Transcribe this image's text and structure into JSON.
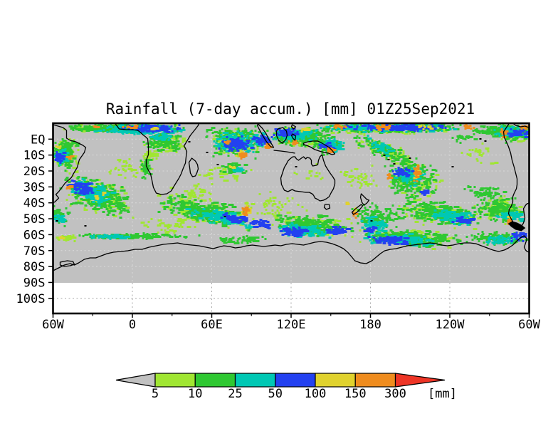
{
  "title": "Rainfall (7-day accum.) [mm] 01Z25Sep2021",
  "map": {
    "y_axis": {
      "labels": [
        "EQ",
        "10S",
        "20S",
        "30S",
        "40S",
        "50S",
        "60S",
        "70S",
        "80S",
        "90S",
        "100S"
      ]
    },
    "x_axis": {
      "labels": [
        "60W",
        "0",
        "60E",
        "120E",
        "180",
        "120W",
        "60W"
      ]
    }
  },
  "colorbar": {
    "labels": [
      "5",
      "10",
      "25",
      "50",
      "100",
      "150",
      "300"
    ],
    "levels": [
      5,
      10,
      25,
      50,
      100,
      150,
      300
    ],
    "unit": "[mm]",
    "segment_colors": [
      "#a0e632",
      "#2fc832",
      "#00c8b4",
      "#2341f0",
      "#e0d22e",
      "#ef8c1e"
    ],
    "arrow_low_color": "#c1c1c1",
    "arrow_high_color": "#ee3526"
  },
  "palette": {
    "bg": "#c1c1c1",
    "below_pole": "#ffffff",
    "c5": "#a0e632",
    "c10": "#2fc832",
    "c25": "#00c8b4",
    "c50": "#2341f0",
    "c100": "#e0d22e",
    "c150": "#ef8c1e",
    "c300": "#ee3526",
    "coast": "#000000",
    "grid_light": "#d9d9d9",
    "grid_dark": "#a9a9a9",
    "frame": "#000000"
  },
  "map_data": {
    "coastlines": [
      "M0,2 L14,6 19,10 19,21 24,24 32,26 42,31 46,34 44,41 37,51 34,62 28,72 26,76 17,84 8,96 4,100 8,105 3,110 0,112",
      "M87,0 L90,4 93,8 103,9 112,9 119,10 123,13 126,16 130,19 133,22 134,32 134,44 131,52 131,60 134,66 137,71 139,80 141,90 145,98 152,100 160,99 166,95 172,85 177,77 180,71 183,63 186,56 187,47 188,40 186,35 184,32 187,27 190,22 193,17 197,12 201,7 204,3 205,0",
      "M195,49 L200,53 203,58 204,64 202,70 200,74 196,75 193,70 192,62 191,55 Z",
      "M322,71 L320,77 321,86 324,92 325,94 330,96 336,93 340,95 348,96 355,97 360,97 364,99 366,101 368,105 372,107 375,109 380,108 384,106 388,103 391,97 394,92 396,85 396,80 393,75 390,71 386,65 383,60 380,52 378,44 375,47 373,52 372,58 370,59 365,60 363,57 363,52 361,49 357,48 355,50 352,47 349,49 345,52 342,50 340,47 337,47 333,50 330,53 328,57 325,62 Z",
      "M382,114 L388,114 389,119 384,121 381,118 Z",
      "M352,28 L358,26 365,25 372,25 378,28 383,31 388,34 392,38 396,43 392,44 387,42 381,41 374,39 368,37 361,33 356,31 352,30 Z",
      "M316,8 L323,6 328,11 329,17 327,23 322,28 317,24 314,17 314,11 Z",
      "M288,1 L294,7 299,14 303,22 307,29 310,34 306,33 300,26 295,18 290,9 287,3 Z",
      "M310,38 L320,39 328,40 334,41 340,42",
      "M337,15 L341,18 340,24 337,21 335,17 Z",
      "M336,2 L341,5 338,8 335,5 Z",
      "M433,99 L437,103 441,107 444,108 441,112 437,115 434,111 432,104 Z",
      "M435,116 L431,121 427,125 422,128 420,125 424,121 429,117 433,114 Z",
      "M641,0 L637,6 633,12 634,20 637,26 640,33 643,42 645,52 648,62 650,70 652,78 652,86 651,92 648,98 646,103 646,110 644,116 641,121 640,127 643,133 646,138 650,143 654,147 658,145 661,140 663,133 662,127 661,120 664,115 666,113 669,112",
      "M646,0 L650,3 657,5 663,4 669,6",
      "M0,207 L8,203 16,199 24,197 30,199 36,196 44,191 52,189 60,189 68,186 76,183 85,181 95,180 105,179 115,177 125,177 135,174 145,172 155,170 165,169 175,168 185,170 195,171 205,172 215,174 225,176 232,174 240,172 248,173 256,175 264,174 272,172 280,171 288,172 296,173 304,172 312,171 320,172 328,170 336,169 344,170 352,171 360,169 368,167 376,166 384,167 392,169 400,172 408,176 414,181 420,188 424,193 432,196 440,197 448,193 454,188 460,183 466,179 474,177 482,176 490,174 498,172 506,171 514,170 522,169 530,168 538,169 546,171 554,172 562,171 570,169 578,168 586,168 594,169 602,172 610,175 618,178 626,180 634,178 640,175 646,171 650,167 654,163 658,160 662,158 666,162 664,168 662,174 664,178 666,180 669,181",
      "M10,195 L20,193 28,194 30,198 24,200 16,201 10,199 Z"
    ],
    "coast_fills": [
      "M645,138 L652,140 658,143 663,147 658,151 650,149 644,145 640,141 Z"
    ],
    "islands": [
      [
        599,
        21
      ],
      [
        606,
        24
      ],
      [
        470,
        50
      ],
      [
        478,
        56
      ],
      [
        500,
        48
      ],
      [
        560,
        60
      ],
      [
        446,
        136
      ],
      [
        240,
        130
      ],
      [
        190,
        25
      ],
      [
        215,
        40
      ],
      [
        230,
        57
      ],
      [
        44,
        143
      ],
      [
        340,
        60
      ],
      [
        464,
        44
      ],
      [
        4,
        136
      ]
    ],
    "rain_cells": [
      [
        95,
        5,
        100,
        7,
        0,
        300,
        3,
        "c10"
      ],
      [
        120,
        8,
        75,
        9,
        0,
        190,
        3,
        "c25"
      ],
      [
        135,
        6,
        55,
        7,
        0,
        120,
        3,
        "c50"
      ],
      [
        60,
        3,
        12,
        3,
        0,
        6,
        3,
        "c150"
      ],
      [
        105,
        4,
        18,
        4,
        0,
        8,
        3,
        "c150"
      ],
      [
        140,
        7,
        14,
        4,
        0,
        6,
        3,
        "c100"
      ],
      [
        95,
        6,
        100,
        8,
        0,
        120,
        3,
        "c5"
      ],
      [
        15,
        40,
        22,
        28,
        0,
        150,
        3,
        "c10"
      ],
      [
        15,
        40,
        24,
        30,
        0,
        90,
        3,
        "c5"
      ],
      [
        10,
        45,
        14,
        14,
        0,
        55,
        3,
        "c25"
      ],
      [
        8,
        47,
        9,
        9,
        0,
        28,
        3,
        "c50"
      ],
      [
        22,
        46,
        5,
        4,
        0,
        8,
        3,
        "c150"
      ],
      [
        6,
        31,
        4,
        3,
        0,
        4,
        3,
        "c100"
      ],
      [
        155,
        25,
        35,
        16,
        0,
        130,
        3,
        "c10"
      ],
      [
        158,
        28,
        36,
        17,
        0,
        80,
        3,
        "c5"
      ],
      [
        150,
        18,
        18,
        8,
        0,
        35,
        3,
        "c25"
      ],
      [
        128,
        60,
        8,
        18,
        0,
        40,
        3,
        "c10"
      ],
      [
        135,
        45,
        20,
        10,
        0,
        30,
        3,
        "c5"
      ],
      [
        255,
        22,
        52,
        26,
        0,
        210,
        3,
        "c10"
      ],
      [
        255,
        25,
        55,
        28,
        0,
        130,
        3,
        "c5"
      ],
      [
        255,
        25,
        38,
        18,
        0,
        120,
        3,
        "c25"
      ],
      [
        258,
        28,
        30,
        14,
        0,
        90,
        3,
        "c50"
      ],
      [
        244,
        26,
        6,
        4,
        0,
        10,
        3,
        "c150"
      ],
      [
        265,
        43,
        7,
        6,
        0,
        14,
        3,
        "c150"
      ],
      [
        262,
        40,
        10,
        8,
        0,
        9,
        3,
        "c100"
      ],
      [
        299,
        32,
        4,
        7,
        0,
        10,
        3,
        "c150"
      ],
      [
        290,
        22,
        20,
        12,
        0,
        70,
        3,
        "c25"
      ],
      [
        292,
        22,
        16,
        9,
        0,
        45,
        3,
        "c50"
      ],
      [
        345,
        18,
        55,
        18,
        0,
        230,
        3,
        "c10"
      ],
      [
        345,
        18,
        58,
        20,
        0,
        140,
        3,
        "c5"
      ],
      [
        338,
        15,
        38,
        12,
        0,
        120,
        3,
        "c25"
      ],
      [
        327,
        12,
        22,
        8,
        0,
        55,
        3,
        "c50"
      ],
      [
        337,
        25,
        7,
        4,
        0,
        10,
        3,
        "c150"
      ],
      [
        352,
        8,
        9,
        4,
        0,
        8,
        3,
        "c100"
      ],
      [
        388,
        36,
        8,
        5,
        0,
        16,
        3,
        "c150"
      ],
      [
        383,
        32,
        12,
        8,
        0,
        30,
        3,
        "c50"
      ],
      [
        390,
        30,
        20,
        12,
        0,
        55,
        3,
        "c25"
      ],
      [
        385,
        30,
        26,
        16,
        0,
        70,
        3,
        "c10"
      ],
      [
        470,
        5,
        130,
        8,
        0,
        340,
        3,
        "c10"
      ],
      [
        465,
        5,
        110,
        7,
        0,
        240,
        3,
        "c25"
      ],
      [
        480,
        5,
        90,
        6,
        0,
        160,
        3,
        "c50"
      ],
      [
        465,
        4,
        22,
        5,
        0,
        22,
        3,
        "c150"
      ],
      [
        400,
        3,
        16,
        4,
        0,
        12,
        3,
        "c150"
      ],
      [
        580,
        4,
        14,
        5,
        0,
        14,
        3,
        "c150"
      ],
      [
        520,
        4,
        20,
        4,
        0,
        10,
        3,
        "c100"
      ],
      [
        470,
        6,
        130,
        9,
        0,
        120,
        3,
        "c5"
      ],
      [
        625,
        8,
        45,
        10,
        0,
        140,
        3,
        "c10"
      ],
      [
        640,
        10,
        32,
        10,
        0,
        90,
        3,
        "c25"
      ],
      [
        650,
        12,
        22,
        8,
        0,
        40,
        3,
        "c50"
      ],
      [
        631,
        12,
        5,
        8,
        0,
        12,
        3,
        "c150"
      ],
      [
        660,
        5,
        8,
        4,
        0,
        8,
        3,
        "c150"
      ],
      [
        645,
        15,
        30,
        14,
        0,
        80,
        3,
        "c10"
      ],
      [
        645,
        15,
        32,
        15,
        0,
        60,
        3,
        "c5"
      ],
      [
        470,
        40,
        60,
        14,
        25,
        130,
        3,
        "c10"
      ],
      [
        470,
        40,
        62,
        16,
        25,
        85,
        3,
        "c5"
      ],
      [
        458,
        32,
        30,
        9,
        25,
        40,
        3,
        "c25"
      ],
      [
        252,
        62,
        22,
        10,
        0,
        50,
        3,
        "c10"
      ],
      [
        250,
        60,
        5,
        3,
        0,
        6,
        3,
        "c100"
      ],
      [
        256,
        64,
        12,
        5,
        0,
        16,
        3,
        "c25"
      ],
      [
        60,
        100,
        62,
        30,
        20,
        240,
        4,
        "c10"
      ],
      [
        60,
        100,
        64,
        32,
        20,
        140,
        3,
        "c5"
      ],
      [
        52,
        95,
        40,
        18,
        20,
        120,
        4,
        "c25"
      ],
      [
        40,
        90,
        24,
        11,
        20,
        60,
        4,
        "c50"
      ],
      [
        22,
        89,
        5,
        4,
        0,
        9,
        3,
        "c150"
      ],
      [
        60,
        103,
        4,
        3,
        0,
        5,
        3,
        "c100"
      ],
      [
        70,
        97,
        4,
        3,
        0,
        4,
        3,
        "c100"
      ],
      [
        6,
        128,
        16,
        16,
        0,
        50,
        3,
        "c10"
      ],
      [
        5,
        132,
        10,
        9,
        0,
        20,
        3,
        "c25"
      ],
      [
        210,
        122,
        85,
        20,
        12,
        240,
        4,
        "c10"
      ],
      [
        210,
        122,
        88,
        22,
        12,
        140,
        3,
        "c5"
      ],
      [
        232,
        130,
        52,
        12,
        12,
        110,
        4,
        "c25"
      ],
      [
        255,
        133,
        30,
        9,
        12,
        55,
        4,
        "c50"
      ],
      [
        269,
        122,
        6,
        9,
        0,
        16,
        3,
        "c150"
      ],
      [
        269,
        122,
        10,
        13,
        0,
        10,
        3,
        "c100"
      ],
      [
        290,
        140,
        20,
        8,
        10,
        32,
        4,
        "c50"
      ],
      [
        360,
        142,
        65,
        18,
        4,
        210,
        4,
        "c10"
      ],
      [
        360,
        142,
        68,
        20,
        4,
        120,
        3,
        "c5"
      ],
      [
        350,
        148,
        45,
        12,
        4,
        100,
        4,
        "c25"
      ],
      [
        335,
        150,
        26,
        8,
        4,
        48,
        4,
        "c50"
      ],
      [
        395,
        150,
        20,
        7,
        0,
        32,
        4,
        "c50"
      ],
      [
        450,
        130,
        40,
        22,
        10,
        140,
        3,
        "c10"
      ],
      [
        452,
        140,
        26,
        11,
        10,
        60,
        4,
        "c25"
      ],
      [
        445,
        148,
        13,
        6,
        0,
        20,
        4,
        "c50"
      ],
      [
        422,
        127,
        3,
        6,
        0,
        7,
        3,
        "c150"
      ],
      [
        424,
        120,
        3,
        3,
        0,
        4,
        3,
        "c100"
      ],
      [
        413,
        110,
        3,
        2,
        0,
        3,
        3,
        "c100"
      ],
      [
        505,
        80,
        45,
        28,
        0,
        190,
        3,
        "c10"
      ],
      [
        505,
        80,
        48,
        30,
        0,
        110,
        3,
        "c5"
      ],
      [
        498,
        72,
        30,
        16,
        0,
        85,
        3,
        "c25"
      ],
      [
        490,
        66,
        18,
        9,
        0,
        38,
        3,
        "c50"
      ],
      [
        509,
        68,
        5,
        14,
        0,
        24,
        3,
        "c150"
      ],
      [
        510,
        70,
        8,
        17,
        0,
        12,
        3,
        "c100"
      ],
      [
        471,
        74,
        3,
        6,
        0,
        8,
        3,
        "c150"
      ],
      [
        520,
        95,
        10,
        6,
        0,
        12,
        4,
        "c50"
      ],
      [
        495,
        66,
        34,
        16,
        0,
        55,
        3,
        "c10"
      ],
      [
        540,
        125,
        70,
        20,
        8,
        210,
        4,
        "c10"
      ],
      [
        540,
        125,
        72,
        22,
        8,
        120,
        3,
        "c5"
      ],
      [
        560,
        130,
        40,
        12,
        8,
        75,
        4,
        "c25"
      ],
      [
        575,
        135,
        20,
        7,
        0,
        28,
        4,
        "c50"
      ],
      [
        625,
        120,
        45,
        22,
        8,
        160,
        3,
        "c10"
      ],
      [
        625,
        120,
        47,
        24,
        8,
        95,
        3,
        "c5"
      ],
      [
        640,
        128,
        24,
        10,
        8,
        48,
        4,
        "c25"
      ],
      [
        639,
        136,
        3,
        7,
        0,
        8,
        3,
        "c150"
      ],
      [
        640,
        130,
        3,
        4,
        0,
        4,
        3,
        "c100"
      ],
      [
        605,
        95,
        40,
        14,
        10,
        55,
        3,
        "c10"
      ],
      [
        500,
        160,
        90,
        14,
        3,
        240,
        4,
        "c10"
      ],
      [
        500,
        160,
        92,
        15,
        3,
        110,
        3,
        "c5"
      ],
      [
        490,
        162,
        60,
        10,
        3,
        120,
        4,
        "c25"
      ],
      [
        470,
        163,
        35,
        8,
        0,
        65,
        4,
        "c50"
      ],
      [
        620,
        160,
        50,
        12,
        0,
        120,
        3,
        "c10"
      ],
      [
        630,
        163,
        30,
        8,
        0,
        50,
        3,
        "c25"
      ],
      [
        652,
        158,
        14,
        10,
        0,
        30,
        3,
        "c50"
      ],
      [
        110,
        157,
        110,
        5,
        0,
        150,
        3,
        "c10"
      ],
      [
        80,
        158,
        40,
        4,
        0,
        40,
        3,
        "c25"
      ],
      [
        20,
        160,
        20,
        6,
        0,
        28,
        3,
        "c5"
      ],
      [
        10,
        160,
        4,
        3,
        0,
        4,
        3,
        "c100"
      ],
      [
        265,
        162,
        45,
        8,
        0,
        55,
        3,
        "c10"
      ],
      [
        105,
        62,
        40,
        20,
        0,
        35,
        3,
        "c5"
      ],
      [
        310,
        112,
        55,
        25,
        0,
        50,
        3,
        "c5"
      ],
      [
        200,
        95,
        40,
        18,
        0,
        38,
        3,
        "c5"
      ],
      [
        430,
        75,
        35,
        20,
        0,
        38,
        3,
        "c5"
      ],
      [
        600,
        40,
        40,
        18,
        0,
        26,
        3,
        "c5"
      ],
      [
        360,
        68,
        30,
        16,
        0,
        12,
        3,
        "c5"
      ],
      [
        575,
        20,
        25,
        10,
        0,
        18,
        3,
        "c10"
      ],
      [
        240,
        70,
        45,
        15,
        0,
        30,
        3,
        "c5"
      ],
      [
        160,
        140,
        55,
        18,
        0,
        45,
        3,
        "c5"
      ]
    ]
  }
}
